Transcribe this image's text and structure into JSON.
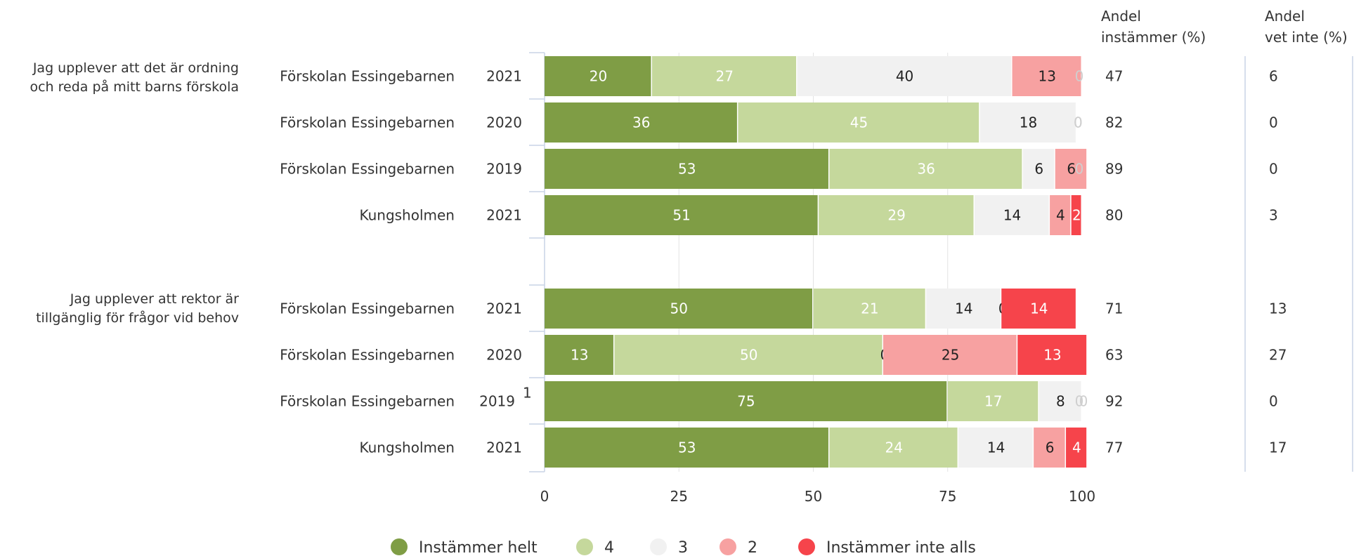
{
  "chart_data": {
    "type": "bar",
    "orientation": "horizontal",
    "stacked": true,
    "xlim": [
      0,
      100
    ],
    "x_ticks": [
      "0",
      "25",
      "50",
      "75",
      "100"
    ],
    "grid": true,
    "legend_position": "bottom",
    "series": [
      {
        "name": "Instämmer helt",
        "color": "#7f9d45",
        "label_color": "#ffffff"
      },
      {
        "name": "4",
        "color": "#c5d89c",
        "label_color": "#ffffff"
      },
      {
        "name": "3",
        "color": "#f1f1f1",
        "label_color": "#222222"
      },
      {
        "name": "2",
        "color": "#f7a1a1",
        "label_color": "#222222"
      },
      {
        "name": "Instämmer inte alls",
        "color": "#f6444b",
        "label_color": "#ffffff"
      }
    ],
    "columns": {
      "agree": [
        "Andel",
        "instämmer (%)"
      ],
      "dontknow": [
        "Andel",
        "vet inte (%)"
      ]
    },
    "questions": [
      {
        "label": [
          "Jag upplever att det är ordning",
          "och reda på mitt barns förskola"
        ],
        "rows": [
          {
            "unit": "Förskolan Essingebarnen",
            "year": "2021",
            "values": [
              20,
              27,
              40,
              13,
              0
            ],
            "agree": "47",
            "dontknow": "6"
          },
          {
            "unit": "Förskolan Essingebarnen",
            "year": "2020",
            "values": [
              36,
              45,
              18,
              0,
              0
            ],
            "agree": "82",
            "dontknow": "0"
          },
          {
            "unit": "Förskolan Essingebarnen",
            "year": "2019",
            "values": [
              53,
              36,
              6,
              6,
              0
            ],
            "agree": "89",
            "dontknow": "0"
          },
          {
            "unit": "Kungsholmen",
            "year": "2021",
            "values": [
              51,
              29,
              14,
              4,
              2
            ],
            "agree": "80",
            "dontknow": "3"
          }
        ]
      },
      {
        "label": [
          "Jag upplever att rektor är",
          "tillgänglig för frågor vid behov"
        ],
        "rows": [
          {
            "unit": "Förskolan Essingebarnen",
            "year": "2021",
            "values": [
              50,
              21,
              14,
              0,
              14
            ],
            "agree": "71",
            "dontknow": "13"
          },
          {
            "unit": "Förskolan Essingebarnen",
            "year": "2020",
            "values": [
              13,
              50,
              0,
              25,
              13
            ],
            "agree": "63",
            "dontknow": "27"
          },
          {
            "unit": "Förskolan Essingebarnen",
            "year": "2019",
            "footnote": "1",
            "values": [
              75,
              17,
              8,
              0,
              0
            ],
            "agree": "92",
            "dontknow": "0"
          },
          {
            "unit": "Kungsholmen",
            "year": "2021",
            "values": [
              53,
              24,
              14,
              6,
              4
            ],
            "agree": "77",
            "dontknow": "17"
          }
        ]
      }
    ]
  }
}
